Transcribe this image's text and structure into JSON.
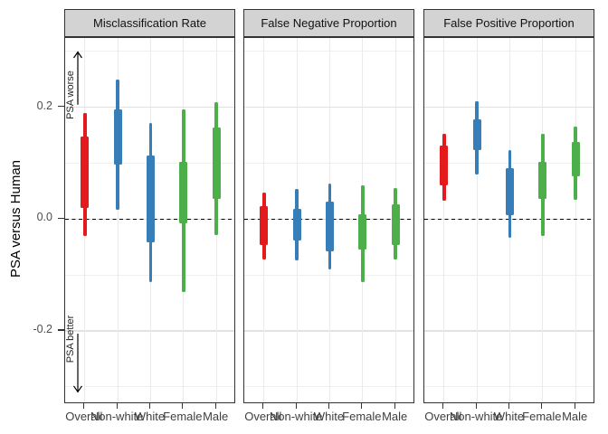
{
  "chart_data": {
    "type": "bar",
    "subtype": "faceted vertical credible-interval plot (thin = wide interval, thick = narrow interval)",
    "ylabel": "PSA versus Human",
    "yticks": [
      {
        "label": "0.2",
        "value": 0.2
      },
      {
        "label": "0.0",
        "value": 0.0
      },
      {
        "label": "-0.2",
        "value": -0.2
      }
    ],
    "ylim": [
      -0.331,
      0.324
    ],
    "grid_major": [
      0.2,
      0.0,
      -0.2
    ],
    "grid_minor": [
      0.3,
      0.1,
      -0.1,
      -0.3
    ],
    "reference_line": {
      "y": 0,
      "style": "dashed",
      "color": "#000000"
    },
    "categories": [
      "Overall",
      "Non-white",
      "White",
      "Female",
      "Male"
    ],
    "group_colors": {
      "overall": "#E41A1C",
      "race": "#377EB8",
      "sex": "#4DAF4A"
    },
    "panel_style": {
      "strip_bg": "#d3d3d3",
      "border": "#333333",
      "grid": "#ebebeb",
      "tick_label_color": "#4d4d4d"
    },
    "legend": "none",
    "panels": [
      {
        "title": "Misclassification Rate",
        "intervals": [
          {
            "category": "Overall",
            "group": "overall",
            "outer": [
              -0.03,
              0.19
            ],
            "inner": [
              0.02,
              0.148
            ]
          },
          {
            "category": "Non-white",
            "group": "race",
            "outer": [
              0.017,
              0.25
            ],
            "inner": [
              0.098,
              0.197
            ]
          },
          {
            "category": "White",
            "group": "race",
            "outer": [
              -0.113,
              0.172
            ],
            "inner": [
              -0.042,
              0.113
            ]
          },
          {
            "category": "Female",
            "group": "sex",
            "outer": [
              -0.13,
              0.197
            ],
            "inner": [
              -0.008,
              0.102
            ]
          },
          {
            "category": "Male",
            "group": "sex",
            "outer": [
              -0.028,
              0.209
            ],
            "inner": [
              0.036,
              0.164
            ]
          }
        ],
        "annotations": [
          {
            "text": "PSA worse",
            "arrow": "up",
            "arrow_span": [
              0.205,
              0.3
            ],
            "text_center": 0.222
          },
          {
            "text": "PSA better",
            "arrow": "down",
            "arrow_span": [
              -0.205,
              -0.31
            ],
            "text_center": -0.215
          }
        ]
      },
      {
        "title": "False Negative Proportion",
        "intervals": [
          {
            "category": "Overall",
            "group": "overall",
            "outer": [
              -0.073,
              0.048
            ],
            "inner": [
              -0.046,
              0.023
            ]
          },
          {
            "category": "Non-white",
            "group": "race",
            "outer": [
              -0.074,
              0.054
            ],
            "inner": [
              -0.038,
              0.018
            ]
          },
          {
            "category": "White",
            "group": "race",
            "outer": [
              -0.09,
              0.063
            ],
            "inner": [
              -0.058,
              0.032
            ]
          },
          {
            "category": "Female",
            "group": "sex",
            "outer": [
              -0.112,
              0.06
            ],
            "inner": [
              -0.055,
              0.009
            ]
          },
          {
            "category": "Male",
            "group": "sex",
            "outer": [
              -0.073,
              0.055
            ],
            "inner": [
              -0.046,
              0.027
            ]
          }
        ],
        "annotations": []
      },
      {
        "title": "False Positive Proportion",
        "intervals": [
          {
            "category": "Overall",
            "group": "overall",
            "outer": [
              0.033,
              0.153
            ],
            "inner": [
              0.06,
              0.131
            ]
          },
          {
            "category": "Non-white",
            "group": "race",
            "outer": [
              0.08,
              0.211
            ],
            "inner": [
              0.123,
              0.178
            ]
          },
          {
            "category": "White",
            "group": "race",
            "outer": [
              -0.033,
              0.123
            ],
            "inner": [
              0.007,
              0.091
            ]
          },
          {
            "category": "Female",
            "group": "sex",
            "outer": [
              -0.03,
              0.153
            ],
            "inner": [
              0.036,
              0.102
            ]
          },
          {
            "category": "Male",
            "group": "sex",
            "outer": [
              0.034,
              0.166
            ],
            "inner": [
              0.077,
              0.138
            ]
          }
        ],
        "annotations": []
      }
    ]
  }
}
